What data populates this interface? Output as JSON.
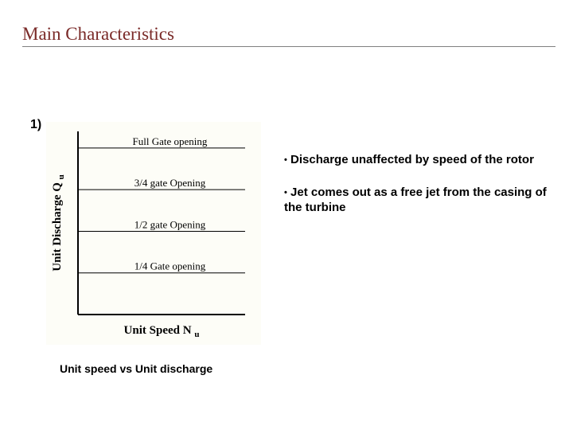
{
  "title": "Main Characteristics",
  "item_number": "1)",
  "chart": {
    "type": "line",
    "background_color": "#fdfdf7",
    "axis_color": "#000000",
    "axis_line_width": 2,
    "line_color": "#000000",
    "line_width": 1,
    "x_axis_label": "Unit Speed N",
    "x_axis_sub": "u",
    "y_axis_label": "Unit Discharge Q",
    "y_axis_sub": "u",
    "axis_font_family": "Times New Roman",
    "axis_font_size": 15,
    "axis_font_weight": "bold",
    "line_label_font_family": "Times New Roman",
    "line_label_font_size": 13,
    "ylim": [
      0,
      1.1
    ],
    "series": [
      {
        "label": "Full Gate opening",
        "y": 1.0
      },
      {
        "label": "3/4 gate Opening",
        "y": 0.75
      },
      {
        "label": "1/2 gate Opening",
        "y": 0.5
      },
      {
        "label": "1/4 Gate opening",
        "y": 0.25
      }
    ]
  },
  "caption": "Unit speed vs Unit discharge",
  "bullets": [
    "Discharge unaffected by speed of the rotor",
    "Jet comes out as a free jet from the casing of the turbine"
  ]
}
